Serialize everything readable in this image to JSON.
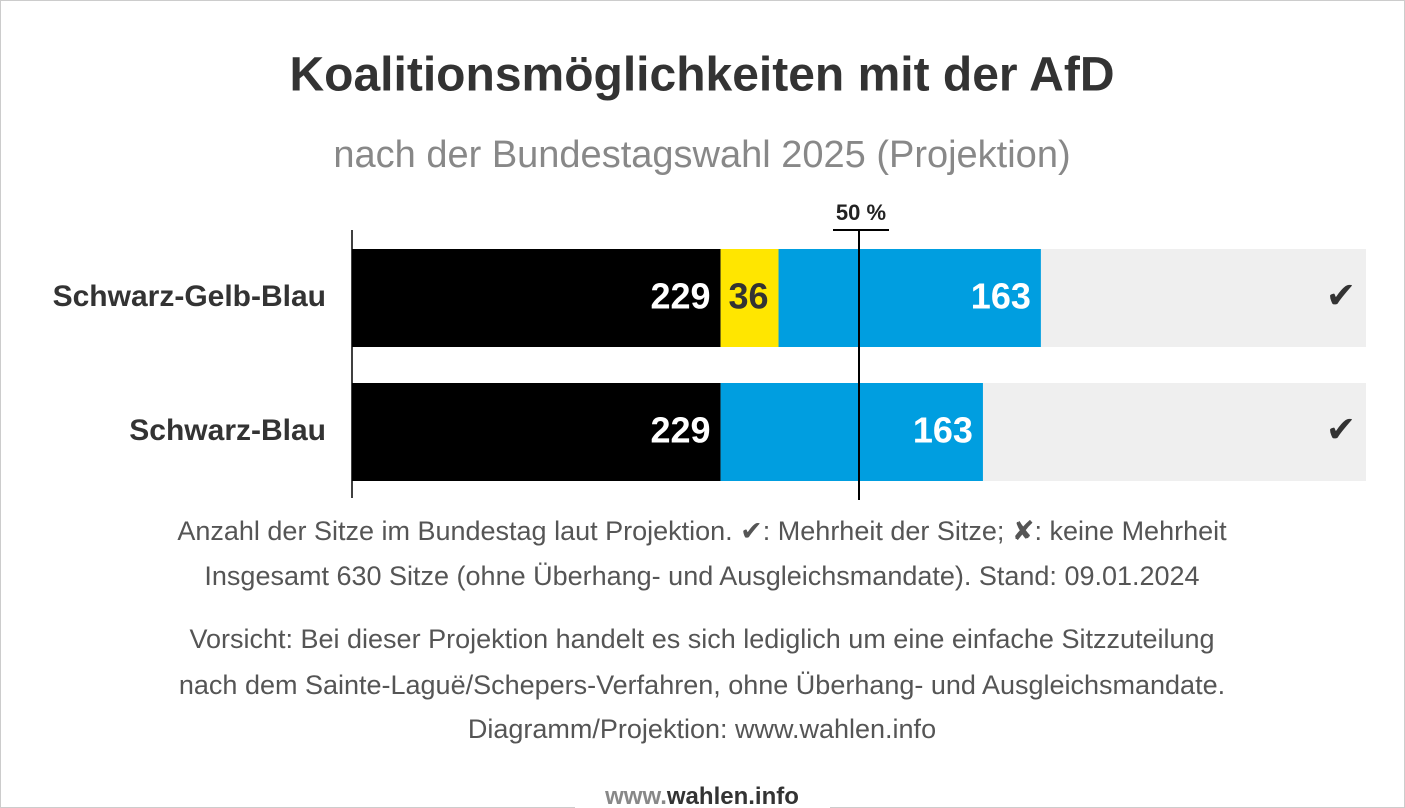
{
  "chart_data": {
    "type": "stacked_barh",
    "title": "Koalitionsmöglichkeiten mit der AfD",
    "subtitle": "nach der Bundestagswahl 2025 (Projektion)",
    "categories": [
      "Schwarz-Gelb-Blau",
      "Schwarz-Blau"
    ],
    "series": [
      {
        "color": "#000000",
        "label_color": "#ffffff",
        "values": [
          229,
          229
        ]
      },
      {
        "color": "#ffe600",
        "label_color": "#333333",
        "values": [
          36,
          null
        ]
      },
      {
        "color": "#009ee0",
        "label_color": "#ffffff",
        "values": [
          163,
          163
        ]
      }
    ],
    "xlim": [
      0,
      630
    ],
    "track_color": "#efefef",
    "majority_line": {
      "value": 315,
      "label": "50 %"
    },
    "result_labels": [
      "✔",
      "✔"
    ],
    "notes": [
      "Anzahl der Sitze im Bundestag laut Projektion. ✔: Mehrheit der Sitze; ✘: keine Mehrheit",
      "Insgesamt 630 Sitze (ohne Überhang- und Ausgleichsmandate). Stand: 09.01.2024",
      "Vorsicht: Bei dieser Projektion handelt es sich lediglich um eine einfache Sitzzuteilung",
      "nach dem Sainte-Laguë/Schepers-Verfahren, ohne Überhang- und Ausgleichsmandate.",
      "Diagramm/Projektion: www.wahlen.info"
    ],
    "footer": {
      "prefix": "www.",
      "brand": "wahlen.info"
    }
  }
}
